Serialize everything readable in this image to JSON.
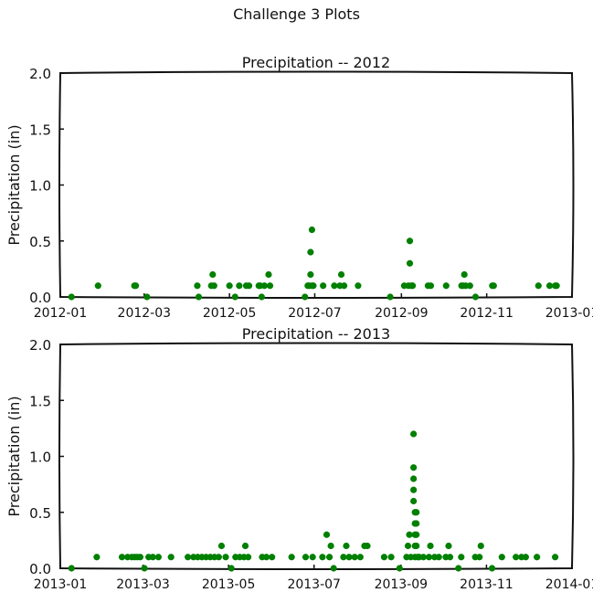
{
  "figure": {
    "suptitle": "Challenge 3 Plots"
  },
  "chart_data": [
    {
      "type": "scatter",
      "title": "Precipitation -- 2012",
      "xlabel": "",
      "ylabel": "Precipitation (in)",
      "xlim": [
        "2012-01-01",
        "2013-01-01"
      ],
      "ylim": [
        0,
        2.0
      ],
      "yticks": [
        0.0,
        0.5,
        1.0,
        1.5,
        2.0
      ],
      "yticklabels": [
        "0.0",
        "0.5",
        "1.0",
        "1.5",
        "2.0"
      ],
      "xticks": [
        "2012-01-01",
        "2012-03-01",
        "2012-05-01",
        "2012-07-01",
        "2012-09-01",
        "2012-11-01",
        "2013-01-01"
      ],
      "xticklabels": [
        "2012-01",
        "2012-03",
        "2012-05",
        "2012-07",
        "2012-09",
        "2012-11",
        "2013-01"
      ],
      "grid": false,
      "marker_color": "#008000",
      "points": [
        {
          "x": "2012-01-09",
          "y": 0.0
        },
        {
          "x": "2012-01-28",
          "y": 0.1
        },
        {
          "x": "2012-02-23",
          "y": 0.1
        },
        {
          "x": "2012-02-24",
          "y": 0.1
        },
        {
          "x": "2012-03-03",
          "y": 0.0
        },
        {
          "x": "2012-04-08",
          "y": 0.1
        },
        {
          "x": "2012-04-09",
          "y": 0.0
        },
        {
          "x": "2012-04-18",
          "y": 0.1
        },
        {
          "x": "2012-04-19",
          "y": 0.2
        },
        {
          "x": "2012-04-20",
          "y": 0.1
        },
        {
          "x": "2012-05-01",
          "y": 0.1
        },
        {
          "x": "2012-05-05",
          "y": 0.0
        },
        {
          "x": "2012-05-08",
          "y": 0.1
        },
        {
          "x": "2012-05-13",
          "y": 0.1
        },
        {
          "x": "2012-05-15",
          "y": 0.1
        },
        {
          "x": "2012-05-22",
          "y": 0.1
        },
        {
          "x": "2012-05-23",
          "y": 0.1
        },
        {
          "x": "2012-05-24",
          "y": 0.0
        },
        {
          "x": "2012-05-26",
          "y": 0.1
        },
        {
          "x": "2012-05-29",
          "y": 0.2
        },
        {
          "x": "2012-05-30",
          "y": 0.1
        },
        {
          "x": "2012-06-24",
          "y": 0.0
        },
        {
          "x": "2012-06-26",
          "y": 0.1
        },
        {
          "x": "2012-06-27",
          "y": 0.1
        },
        {
          "x": "2012-06-28",
          "y": 0.2
        },
        {
          "x": "2012-06-28",
          "y": 0.4
        },
        {
          "x": "2012-06-29",
          "y": 0.6
        },
        {
          "x": "2012-06-29",
          "y": 0.1
        },
        {
          "x": "2012-06-30",
          "y": 0.1
        },
        {
          "x": "2012-07-07",
          "y": 0.1
        },
        {
          "x": "2012-07-15",
          "y": 0.1
        },
        {
          "x": "2012-07-19",
          "y": 0.1
        },
        {
          "x": "2012-07-20",
          "y": 0.2
        },
        {
          "x": "2012-07-22",
          "y": 0.1
        },
        {
          "x": "2012-08-01",
          "y": 0.1
        },
        {
          "x": "2012-08-24",
          "y": 0.0
        },
        {
          "x": "2012-09-03",
          "y": 0.1
        },
        {
          "x": "2012-09-06",
          "y": 0.1
        },
        {
          "x": "2012-09-07",
          "y": 0.5
        },
        {
          "x": "2012-09-07",
          "y": 0.3
        },
        {
          "x": "2012-09-08",
          "y": 0.1
        },
        {
          "x": "2012-09-09",
          "y": 0.1
        },
        {
          "x": "2012-09-20",
          "y": 0.1
        },
        {
          "x": "2012-09-22",
          "y": 0.1
        },
        {
          "x": "2012-10-03",
          "y": 0.1
        },
        {
          "x": "2012-10-14",
          "y": 0.1
        },
        {
          "x": "2012-10-15",
          "y": 0.1
        },
        {
          "x": "2012-10-16",
          "y": 0.2
        },
        {
          "x": "2012-10-17",
          "y": 0.1
        },
        {
          "x": "2012-10-20",
          "y": 0.1
        },
        {
          "x": "2012-10-24",
          "y": 0.0
        },
        {
          "x": "2012-11-05",
          "y": 0.1
        },
        {
          "x": "2012-11-06",
          "y": 0.1
        },
        {
          "x": "2012-12-08",
          "y": 0.1
        },
        {
          "x": "2012-12-16",
          "y": 0.1
        },
        {
          "x": "2012-12-20",
          "y": 0.1
        },
        {
          "x": "2012-12-21",
          "y": 0.1
        }
      ]
    },
    {
      "type": "scatter",
      "title": "Precipitation -- 2013",
      "xlabel": "",
      "ylabel": "Precipitation (in)",
      "xlim": [
        "2013-01-01",
        "2014-01-01"
      ],
      "ylim": [
        0,
        2.0
      ],
      "yticks": [
        0.0,
        0.5,
        1.0,
        1.5,
        2.0
      ],
      "yticklabels": [
        "0.0",
        "0.5",
        "1.0",
        "1.5",
        "2.0"
      ],
      "xticks": [
        "2013-01-01",
        "2013-03-01",
        "2013-05-01",
        "2013-07-01",
        "2013-09-01",
        "2013-11-01",
        "2014-01-01"
      ],
      "xticklabels": [
        "2013-01",
        "2013-03",
        "2013-05",
        "2013-07",
        "2013-09",
        "2013-11",
        "2014-01"
      ],
      "grid": false,
      "marker_color": "#008000",
      "points": [
        {
          "x": "2013-01-09",
          "y": 0.0
        },
        {
          "x": "2013-01-27",
          "y": 0.1
        },
        {
          "x": "2013-02-14",
          "y": 0.1
        },
        {
          "x": "2013-02-18",
          "y": 0.1
        },
        {
          "x": "2013-02-21",
          "y": 0.1
        },
        {
          "x": "2013-02-23",
          "y": 0.1
        },
        {
          "x": "2013-02-25",
          "y": 0.1
        },
        {
          "x": "2013-02-27",
          "y": 0.1
        },
        {
          "x": "2013-03-02",
          "y": 0.0
        },
        {
          "x": "2013-03-05",
          "y": 0.1
        },
        {
          "x": "2013-03-08",
          "y": 0.1
        },
        {
          "x": "2013-03-12",
          "y": 0.1
        },
        {
          "x": "2013-03-21",
          "y": 0.1
        },
        {
          "x": "2013-04-02",
          "y": 0.1
        },
        {
          "x": "2013-04-06",
          "y": 0.1
        },
        {
          "x": "2013-04-09",
          "y": 0.1
        },
        {
          "x": "2013-04-12",
          "y": 0.1
        },
        {
          "x": "2013-04-15",
          "y": 0.1
        },
        {
          "x": "2013-04-18",
          "y": 0.1
        },
        {
          "x": "2013-04-21",
          "y": 0.1
        },
        {
          "x": "2013-04-24",
          "y": 0.1
        },
        {
          "x": "2013-04-26",
          "y": 0.2
        },
        {
          "x": "2013-04-29",
          "y": 0.1
        },
        {
          "x": "2013-05-03",
          "y": 0.0
        },
        {
          "x": "2013-05-06",
          "y": 0.1
        },
        {
          "x": "2013-05-09",
          "y": 0.1
        },
        {
          "x": "2013-05-12",
          "y": 0.1
        },
        {
          "x": "2013-05-13",
          "y": 0.2
        },
        {
          "x": "2013-05-15",
          "y": 0.1
        },
        {
          "x": "2013-05-25",
          "y": 0.1
        },
        {
          "x": "2013-05-28",
          "y": 0.1
        },
        {
          "x": "2013-06-01",
          "y": 0.1
        },
        {
          "x": "2013-06-15",
          "y": 0.1
        },
        {
          "x": "2013-06-25",
          "y": 0.1
        },
        {
          "x": "2013-06-30",
          "y": 0.1
        },
        {
          "x": "2013-07-07",
          "y": 0.1
        },
        {
          "x": "2013-07-10",
          "y": 0.3
        },
        {
          "x": "2013-07-12",
          "y": 0.1
        },
        {
          "x": "2013-07-13",
          "y": 0.2
        },
        {
          "x": "2013-07-15",
          "y": 0.0
        },
        {
          "x": "2013-07-22",
          "y": 0.1
        },
        {
          "x": "2013-07-24",
          "y": 0.2
        },
        {
          "x": "2013-07-26",
          "y": 0.1
        },
        {
          "x": "2013-07-30",
          "y": 0.1
        },
        {
          "x": "2013-08-03",
          "y": 0.1
        },
        {
          "x": "2013-08-06",
          "y": 0.2
        },
        {
          "x": "2013-08-08",
          "y": 0.2
        },
        {
          "x": "2013-08-20",
          "y": 0.1
        },
        {
          "x": "2013-08-25",
          "y": 0.1
        },
        {
          "x": "2013-08-31",
          "y": 0.0
        },
        {
          "x": "2013-09-05",
          "y": 0.1
        },
        {
          "x": "2013-09-06",
          "y": 0.2
        },
        {
          "x": "2013-09-07",
          "y": 0.3
        },
        {
          "x": "2013-09-08",
          "y": 0.1
        },
        {
          "x": "2013-09-10",
          "y": 1.2
        },
        {
          "x": "2013-09-10",
          "y": 0.9
        },
        {
          "x": "2013-09-10",
          "y": 0.8
        },
        {
          "x": "2013-09-10",
          "y": 0.7
        },
        {
          "x": "2013-09-10",
          "y": 0.6
        },
        {
          "x": "2013-09-11",
          "y": 0.5
        },
        {
          "x": "2013-09-11",
          "y": 0.4
        },
        {
          "x": "2013-09-11",
          "y": 0.3
        },
        {
          "x": "2013-09-11",
          "y": 0.2
        },
        {
          "x": "2013-09-11",
          "y": 0.1
        },
        {
          "x": "2013-09-12",
          "y": 0.5
        },
        {
          "x": "2013-09-12",
          "y": 0.4
        },
        {
          "x": "2013-09-12",
          "y": 0.3
        },
        {
          "x": "2013-09-12",
          "y": 0.2
        },
        {
          "x": "2013-09-13",
          "y": 0.1
        },
        {
          "x": "2013-09-14",
          "y": 0.1
        },
        {
          "x": "2013-09-17",
          "y": 0.1
        },
        {
          "x": "2013-09-21",
          "y": 0.1
        },
        {
          "x": "2013-09-22",
          "y": 0.2
        },
        {
          "x": "2013-09-25",
          "y": 0.1
        },
        {
          "x": "2013-09-28",
          "y": 0.1
        },
        {
          "x": "2013-10-03",
          "y": 0.1
        },
        {
          "x": "2013-10-05",
          "y": 0.2
        },
        {
          "x": "2013-10-06",
          "y": 0.1
        },
        {
          "x": "2013-10-12",
          "y": 0.0
        },
        {
          "x": "2013-10-14",
          "y": 0.1
        },
        {
          "x": "2013-10-24",
          "y": 0.1
        },
        {
          "x": "2013-10-27",
          "y": 0.1
        },
        {
          "x": "2013-10-28",
          "y": 0.2
        },
        {
          "x": "2013-11-05",
          "y": 0.0
        },
        {
          "x": "2013-11-12",
          "y": 0.1
        },
        {
          "x": "2013-11-22",
          "y": 0.1
        },
        {
          "x": "2013-11-26",
          "y": 0.1
        },
        {
          "x": "2013-11-29",
          "y": 0.1
        },
        {
          "x": "2013-12-07",
          "y": 0.1
        },
        {
          "x": "2013-12-20",
          "y": 0.1
        }
      ]
    }
  ]
}
